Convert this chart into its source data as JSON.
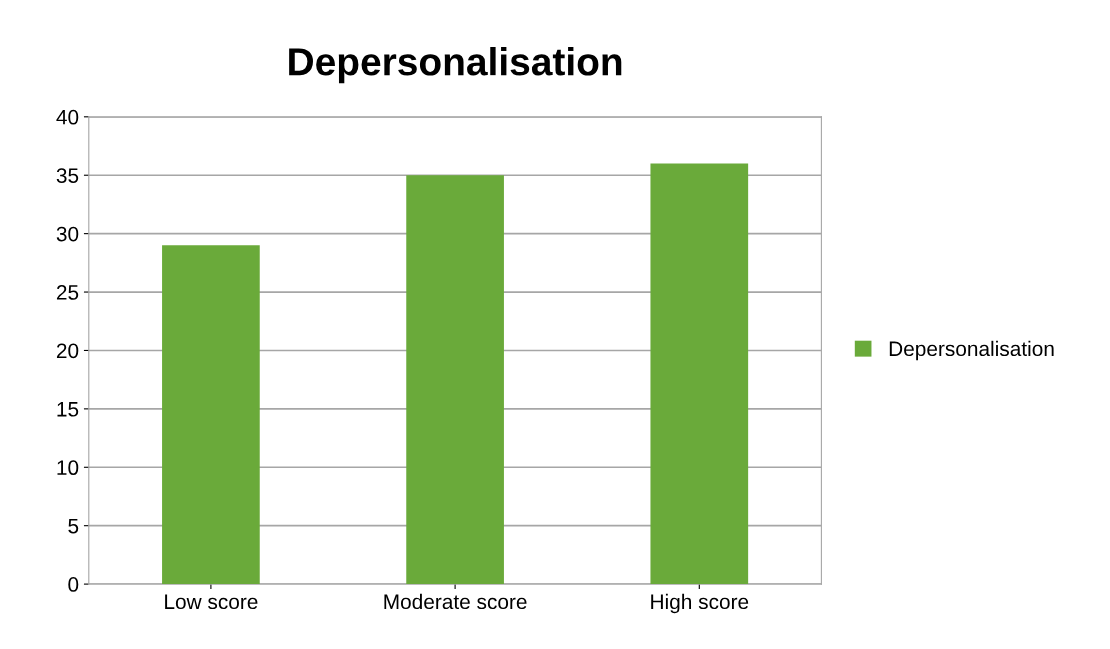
{
  "chart_data": {
    "type": "bar",
    "title": "Depersonalisation",
    "categories": [
      "Low score",
      "Moderate score",
      "High score"
    ],
    "series": [
      {
        "name": "Depersonalisation",
        "color": "#6aaa3a",
        "values": [
          29,
          35,
          36
        ]
      }
    ],
    "ylim": [
      0,
      40
    ],
    "yticks": [
      0,
      5,
      10,
      15,
      20,
      25,
      30,
      35,
      40
    ],
    "grid": "y",
    "legend": "right"
  }
}
